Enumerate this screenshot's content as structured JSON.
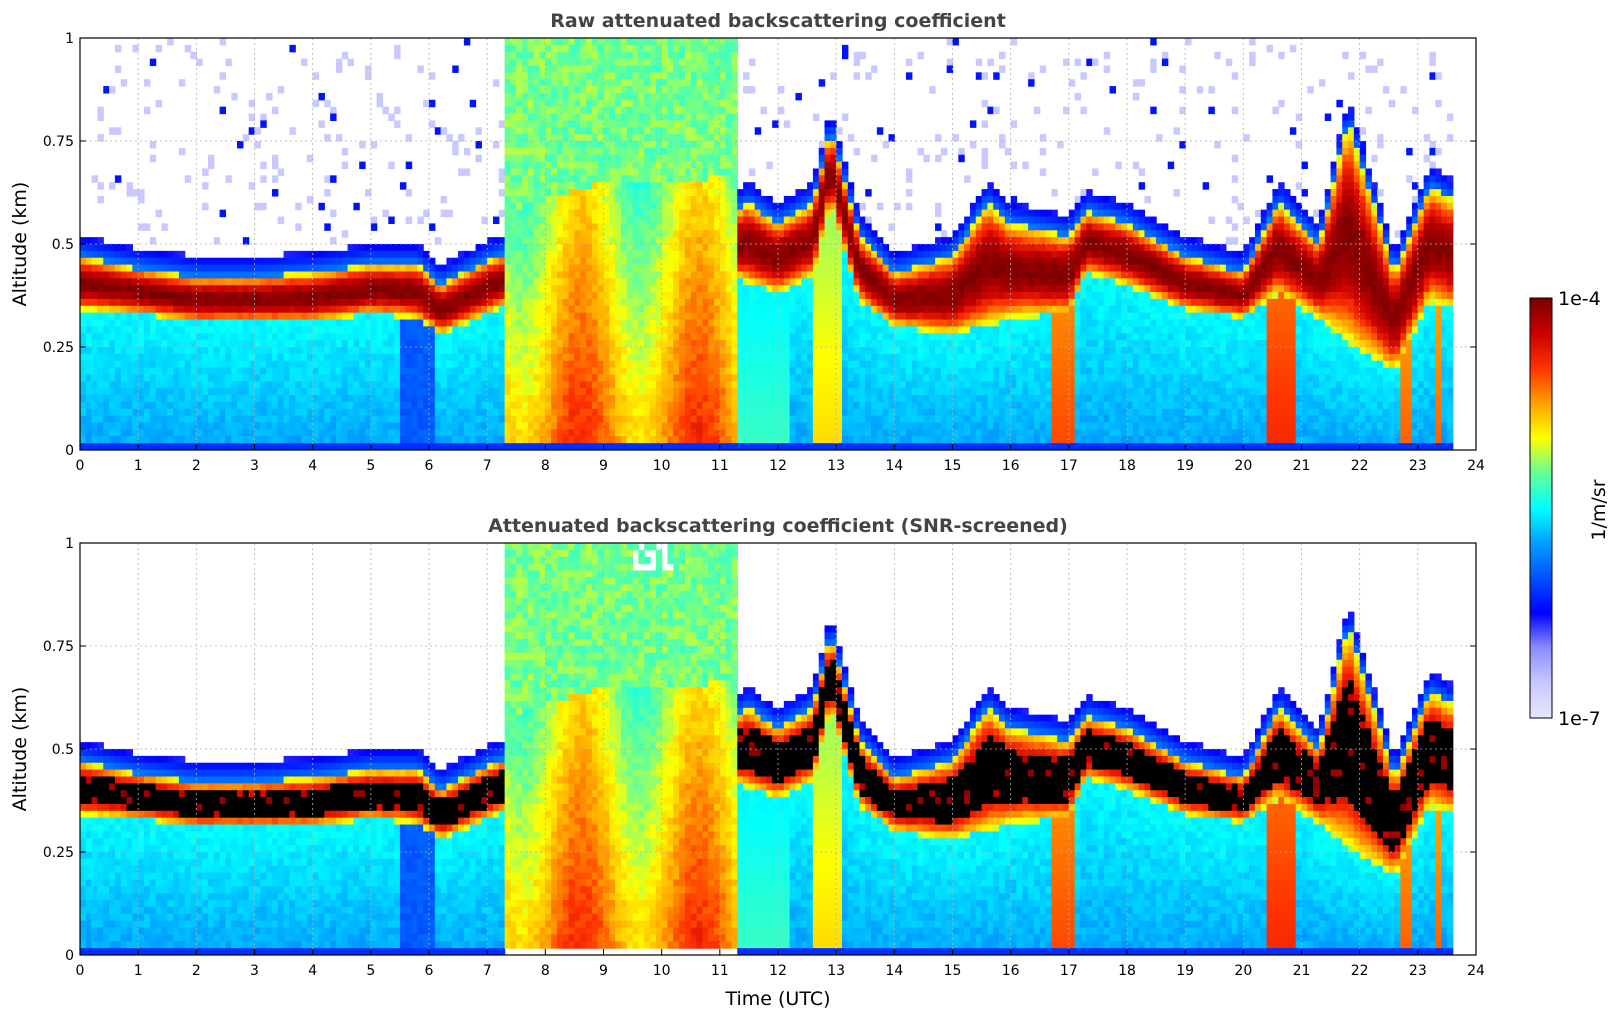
{
  "chart_data": [
    {
      "type": "heatmap",
      "title": "Raw attenuated backscattering coefficient",
      "xlabel": "",
      "ylabel": "Altitude (km)",
      "xlim": [
        0,
        24
      ],
      "ylim": [
        0,
        1
      ],
      "xticks": [
        "0",
        "1",
        "2",
        "3",
        "4",
        "5",
        "6",
        "7",
        "8",
        "9",
        "10",
        "11",
        "12",
        "13",
        "14",
        "15",
        "16",
        "17",
        "18",
        "19",
        "20",
        "21",
        "22",
        "23",
        "24"
      ],
      "yticks": [
        "0",
        "0.25",
        "0.5",
        "0.75",
        "1"
      ],
      "data_end_hour": 23.65,
      "grid": true,
      "screened": false,
      "layer_base_km": [
        [
          0,
          0.34
        ],
        [
          1,
          0.33
        ],
        [
          2,
          0.31
        ],
        [
          3,
          0.31
        ],
        [
          4,
          0.31
        ],
        [
          5,
          0.33
        ],
        [
          5.8,
          0.32
        ],
        [
          6.2,
          0.28
        ],
        [
          7,
          0.33
        ],
        [
          8,
          0.39
        ],
        [
          9,
          0.42
        ],
        [
          10,
          0.42
        ],
        [
          11,
          0.43
        ],
        [
          12,
          0.38
        ],
        [
          12.6,
          0.42
        ],
        [
          12.9,
          0.6
        ],
        [
          13.4,
          0.36
        ],
        [
          14,
          0.3
        ],
        [
          15,
          0.28
        ],
        [
          15.6,
          0.3
        ],
        [
          16,
          0.32
        ],
        [
          17,
          0.33
        ],
        [
          17.3,
          0.43
        ],
        [
          18,
          0.4
        ],
        [
          19,
          0.34
        ],
        [
          20,
          0.32
        ],
        [
          20.6,
          0.38
        ],
        [
          21.3,
          0.32
        ],
        [
          22,
          0.24
        ],
        [
          22.6,
          0.19
        ],
        [
          23.2,
          0.36
        ],
        [
          23.65,
          0.34
        ]
      ],
      "layer_top_km": [
        [
          0,
          0.47
        ],
        [
          1,
          0.44
        ],
        [
          2,
          0.42
        ],
        [
          3,
          0.42
        ],
        [
          4,
          0.43
        ],
        [
          5,
          0.45
        ],
        [
          5.8,
          0.45
        ],
        [
          6.2,
          0.4
        ],
        [
          7,
          0.46
        ],
        [
          8,
          0.51
        ],
        [
          9,
          0.55
        ],
        [
          10,
          0.55
        ],
        [
          11,
          0.56
        ],
        [
          11.5,
          0.6
        ],
        [
          12,
          0.55
        ],
        [
          12.6,
          0.6
        ],
        [
          12.9,
          0.78
        ],
        [
          13.4,
          0.52
        ],
        [
          14,
          0.43
        ],
        [
          15,
          0.47
        ],
        [
          15.6,
          0.6
        ],
        [
          16,
          0.55
        ],
        [
          17,
          0.52
        ],
        [
          17.3,
          0.58
        ],
        [
          18,
          0.55
        ],
        [
          19,
          0.47
        ],
        [
          20,
          0.43
        ],
        [
          20.6,
          0.6
        ],
        [
          21.3,
          0.5
        ],
        [
          21.8,
          0.8
        ],
        [
          22.6,
          0.43
        ],
        [
          23.2,
          0.64
        ],
        [
          23.65,
          0.6
        ]
      ]
    },
    {
      "type": "heatmap",
      "title": "Attenuated backscattering coefficient (SNR-screened)",
      "xlabel": "Time (UTC)",
      "ylabel": "Altitude (km)",
      "xlim": [
        0,
        24
      ],
      "ylim": [
        0,
        1
      ],
      "xticks": [
        "0",
        "1",
        "2",
        "3",
        "4",
        "5",
        "6",
        "7",
        "8",
        "9",
        "10",
        "11",
        "12",
        "13",
        "14",
        "15",
        "16",
        "17",
        "18",
        "19",
        "20",
        "21",
        "22",
        "23",
        "24"
      ],
      "yticks": [
        "0",
        "0.25",
        "0.5",
        "0.75",
        "1"
      ],
      "data_end_hour": 23.65,
      "grid": true,
      "screened": true
    }
  ],
  "colorbar": {
    "label": "1/m/sr",
    "max_label": "1e-4",
    "min_label": "1e-7",
    "colors": [
      "#e6e6ff",
      "#c8c8ff",
      "#8c8cff",
      "#0000ff",
      "#0050ff",
      "#00a0ff",
      "#00ffff",
      "#64ff96",
      "#ffff00",
      "#ffa000",
      "#ff3200",
      "#c80000",
      "#7a0000"
    ]
  }
}
